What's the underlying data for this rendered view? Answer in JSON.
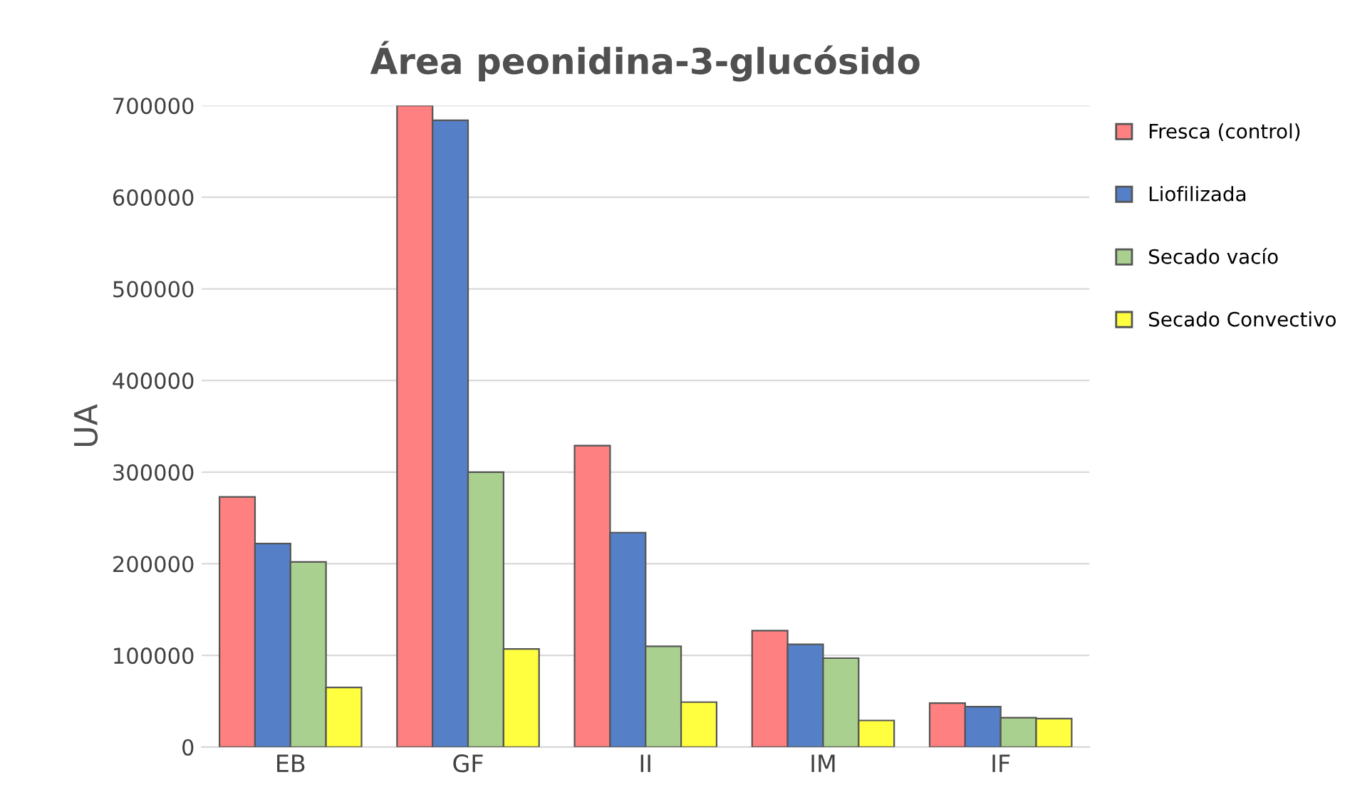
{
  "chart_data": {
    "type": "bar",
    "title": "Área peonidina-3-glucósido",
    "ylabel": "UA",
    "categories": [
      "EB",
      "GF",
      "II",
      "IM",
      "IF"
    ],
    "series": [
      {
        "name": "Fresca (control)",
        "color": "#ff8080",
        "values": [
          273000,
          700000,
          329000,
          127000,
          48000
        ]
      },
      {
        "name": "Liofilizada",
        "color": "#5580c8",
        "values": [
          222000,
          684000,
          234000,
          112000,
          44000
        ]
      },
      {
        "name": "Secado vacío",
        "color": "#a9d08e",
        "values": [
          202000,
          300000,
          110000,
          97000,
          32000
        ]
      },
      {
        "name": "Secado Convectivo",
        "color": "#ffff40",
        "values": [
          65000,
          107000,
          49000,
          29000,
          31000
        ]
      }
    ],
    "ylim": [
      0,
      700000
    ],
    "yticks": [
      0,
      100000,
      200000,
      300000,
      400000,
      500000,
      600000,
      700000
    ],
    "grid": "y",
    "legend": "right"
  }
}
